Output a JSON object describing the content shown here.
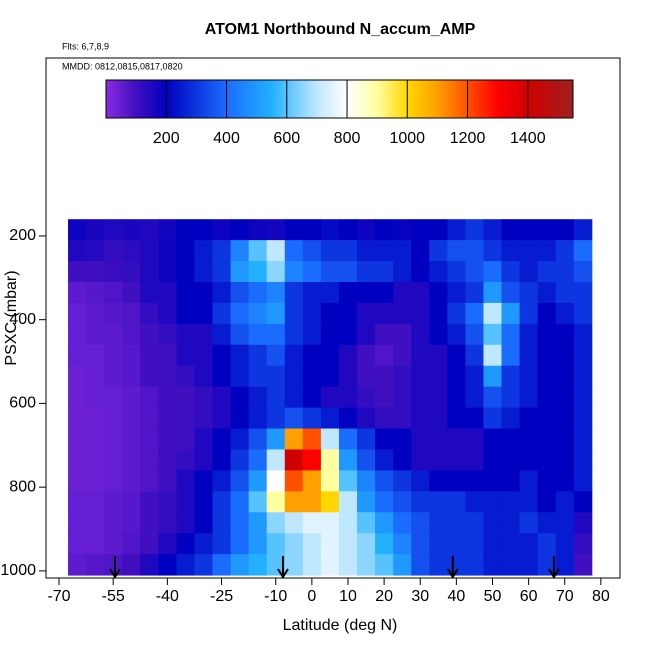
{
  "chart_data": {
    "type": "heatmap",
    "title": "ATOM1 Northbound N_accum_AMP",
    "subtitle": "Flts: 6,7,8,9",
    "annotation": "MMDD: 0812,0815,0817,0820",
    "x_label": "Latitude (deg N)",
    "y_label": "PSXC (mbar)",
    "xlim": [
      -73.6,
      85.3
    ],
    "ylim": [
      -225,
      1017
    ],
    "y_reversed": true,
    "xticks": [
      -70,
      -55,
      -40,
      -25,
      -10,
      0,
      10,
      20,
      30,
      40,
      50,
      60,
      70,
      80
    ],
    "yticks": [
      200,
      400,
      600,
      800,
      1000
    ],
    "x_edges": [
      -67.5,
      -62.5,
      -57.5,
      -52.5,
      -47.5,
      -42.5,
      -37.5,
      -32.5,
      -27.5,
      -22.5,
      -17.5,
      -12.5,
      -7.5,
      -2.5,
      2.5,
      7.5,
      12.5,
      17.5,
      22.5,
      27.5,
      32.5,
      37.5,
      42.5,
      47.5,
      52.5,
      57.5,
      62.5,
      67.5,
      72.5,
      77.5
    ],
    "y_edges": [
      160,
      210,
      260,
      310,
      360,
      410,
      460,
      510,
      560,
      610,
      660,
      710,
      760,
      810,
      860,
      910,
      960,
      1010
    ],
    "values": [
      [
        180,
        160,
        150,
        160,
        150,
        170,
        200,
        200,
        180,
        200,
        180,
        170,
        200,
        200,
        220,
        200,
        180,
        200,
        190,
        200,
        200,
        250,
        300,
        250,
        200,
        200,
        200,
        200,
        250
      ],
      [
        150,
        140,
        120,
        130,
        150,
        180,
        200,
        250,
        300,
        450,
        600,
        700,
        400,
        350,
        300,
        300,
        250,
        250,
        250,
        200,
        300,
        350,
        350,
        300,
        250,
        250,
        250,
        300,
        400
      ],
      [
        100,
        100,
        110,
        120,
        150,
        180,
        200,
        250,
        300,
        500,
        550,
        650,
        450,
        400,
        350,
        350,
        300,
        300,
        250,
        200,
        250,
        300,
        350,
        400,
        300,
        250,
        300,
        300,
        350
      ],
      [
        60,
        70,
        80,
        100,
        150,
        150,
        200,
        200,
        250,
        350,
        400,
        450,
        300,
        250,
        250,
        200,
        200,
        200,
        150,
        150,
        200,
        250,
        300,
        500,
        350,
        300,
        250,
        300,
        300
      ],
      [
        50,
        60,
        70,
        80,
        120,
        150,
        200,
        200,
        300,
        400,
        450,
        500,
        300,
        250,
        200,
        200,
        150,
        150,
        150,
        150,
        200,
        300,
        400,
        700,
        500,
        300,
        200,
        250,
        300
      ],
      [
        50,
        60,
        60,
        80,
        100,
        120,
        150,
        150,
        250,
        350,
        400,
        400,
        300,
        250,
        200,
        200,
        150,
        100,
        100,
        150,
        200,
        250,
        350,
        600,
        400,
        250,
        200,
        200,
        250
      ],
      [
        50,
        50,
        60,
        70,
        100,
        100,
        150,
        150,
        200,
        250,
        300,
        350,
        250,
        200,
        200,
        150,
        100,
        80,
        100,
        150,
        150,
        200,
        300,
        700,
        400,
        250,
        200,
        200,
        250
      ],
      [
        40,
        50,
        60,
        70,
        100,
        100,
        120,
        150,
        200,
        250,
        300,
        300,
        250,
        200,
        200,
        150,
        100,
        100,
        120,
        150,
        150,
        200,
        250,
        500,
        300,
        250,
        200,
        200,
        250
      ],
      [
        40,
        50,
        50,
        60,
        80,
        100,
        100,
        120,
        150,
        200,
        250,
        300,
        250,
        200,
        150,
        150,
        120,
        100,
        120,
        150,
        150,
        200,
        250,
        350,
        300,
        250,
        200,
        200,
        250
      ],
      [
        40,
        40,
        50,
        60,
        80,
        100,
        100,
        120,
        150,
        200,
        250,
        300,
        350,
        300,
        250,
        200,
        150,
        120,
        120,
        150,
        150,
        200,
        200,
        300,
        250,
        200,
        200,
        200,
        250
      ],
      [
        40,
        40,
        50,
        60,
        80,
        100,
        100,
        150,
        200,
        250,
        350,
        500,
        1100,
        1200,
        700,
        400,
        300,
        200,
        200,
        150,
        150,
        150,
        150,
        200,
        200,
        200,
        200,
        200,
        250
      ],
      [
        40,
        40,
        50,
        60,
        80,
        100,
        120,
        150,
        200,
        300,
        400,
        700,
        1400,
        1300,
        900,
        500,
        350,
        250,
        200,
        150,
        150,
        150,
        150,
        200,
        200,
        200,
        200,
        200,
        250
      ],
      [
        40,
        40,
        50,
        60,
        80,
        100,
        150,
        200,
        250,
        350,
        500,
        800,
        1200,
        1100,
        900,
        600,
        450,
        350,
        300,
        250,
        200,
        200,
        200,
        200,
        200,
        250,
        200,
        200,
        250
      ],
      [
        50,
        50,
        60,
        70,
        100,
        120,
        150,
        200,
        300,
        400,
        600,
        900,
        1100,
        1100,
        1000,
        700,
        500,
        400,
        350,
        300,
        300,
        300,
        250,
        250,
        250,
        250,
        200,
        250,
        200
      ],
      [
        50,
        50,
        60,
        70,
        100,
        120,
        150,
        200,
        300,
        400,
        500,
        650,
        700,
        750,
        750,
        700,
        600,
        500,
        400,
        350,
        300,
        300,
        300,
        250,
        250,
        300,
        250,
        250,
        150
      ],
      [
        50,
        50,
        60,
        80,
        100,
        150,
        200,
        250,
        300,
        400,
        500,
        600,
        650,
        700,
        750,
        700,
        650,
        550,
        450,
        350,
        300,
        300,
        300,
        250,
        250,
        250,
        300,
        250,
        120
      ],
      [
        60,
        70,
        80,
        100,
        150,
        200,
        250,
        300,
        400,
        500,
        550,
        600,
        650,
        700,
        750,
        700,
        650,
        600,
        500,
        350,
        300,
        300,
        300,
        250,
        250,
        250,
        300,
        250,
        100
      ]
    ],
    "colorbar_lim": [
      0,
      1550
    ],
    "colorbar_ticks": [
      200,
      400,
      600,
      800,
      1000,
      1200,
      1400
    ],
    "colormap": [
      {
        "value": 0,
        "color": "#8a2be2"
      },
      {
        "value": 100,
        "color": "#4010c0"
      },
      {
        "value": 200,
        "color": "#0000c0"
      },
      {
        "value": 400,
        "color": "#1a6cff"
      },
      {
        "value": 550,
        "color": "#22b0ff"
      },
      {
        "value": 700,
        "color": "#bfe8ff"
      },
      {
        "value": 800,
        "color": "#ffffff"
      },
      {
        "value": 900,
        "color": "#ffffa0"
      },
      {
        "value": 1000,
        "color": "#ffd700"
      },
      {
        "value": 1100,
        "color": "#ffa000"
      },
      {
        "value": 1200,
        "color": "#ff5000"
      },
      {
        "value": 1300,
        "color": "#ff0000"
      },
      {
        "value": 1400,
        "color": "#d00000"
      },
      {
        "value": 1550,
        "color": "#a02020"
      }
    ],
    "arrows": [
      -54.5,
      -8,
      39,
      67
    ]
  }
}
